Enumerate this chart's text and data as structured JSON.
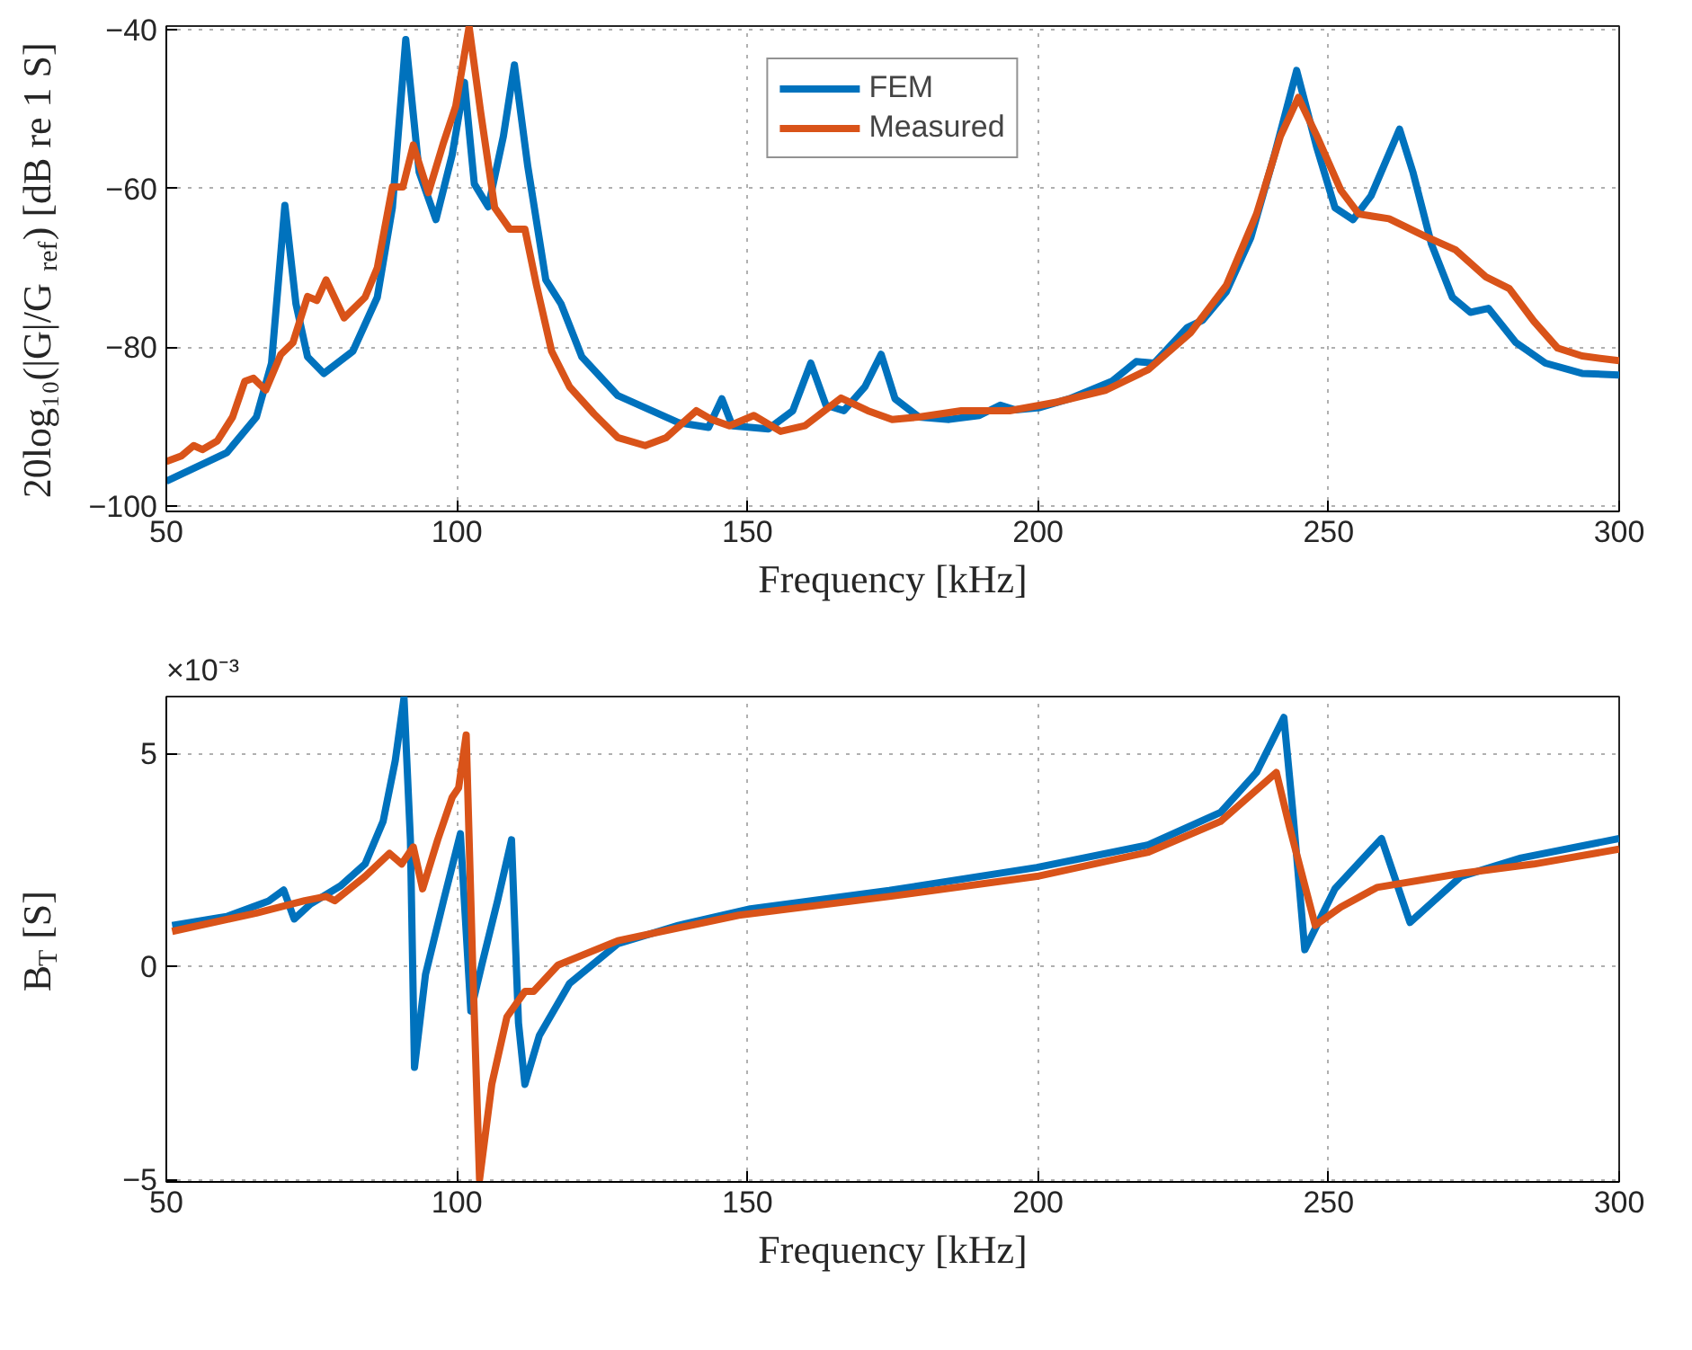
{
  "chart_data": [
    {
      "type": "line",
      "xlabel": "Frequency [kHz]",
      "ylabel": "20log₁₀(|G|/G$_{ref}$) [dB re 1 S]",
      "xlim": [
        50,
        300
      ],
      "ylim": [
        -100.7,
        -39.5
      ],
      "xticks": [
        50,
        100,
        150,
        200,
        250,
        300
      ],
      "yticks": [
        -100,
        -80,
        -60,
        -40
      ],
      "grid": true,
      "legend": "top",
      "line_style": "solid",
      "series": [
        {
          "name": "FEM",
          "color": "#0072bd",
          "x": [
            50,
            60.4,
            65.5,
            68.1,
            70.4,
            72.3,
            74.3,
            77.1,
            82.1,
            86.3,
            88.9,
            91.2,
            93.5,
            96.4,
            99.2,
            101.3,
            103.0,
            105.4,
            108.0,
            109.9,
            112.2,
            115.3,
            117.9,
            121.5,
            127.7,
            138.1,
            143.3,
            145.6,
            147.4,
            153.6,
            157.8,
            160.9,
            163.5,
            166.6,
            170.2,
            173.0,
            175.4,
            179.5,
            184.7,
            189.9,
            193.5,
            196.1,
            200.3,
            205.4,
            212.7,
            216.9,
            220.0,
            225.7,
            228.3,
            232.4,
            236.6,
            240.7,
            244.5,
            248.0,
            251.1,
            254.2,
            257.3,
            262.2,
            264.5,
            267.7,
            271.3,
            274.4,
            277.5,
            282.2,
            287.3,
            293.6,
            300
          ],
          "values": [
            -96.9,
            -93.3,
            -88.8,
            -82.0,
            -62.1,
            -74.5,
            -81.2,
            -83.3,
            -80.5,
            -73.7,
            -62.4,
            -41.2,
            -57.9,
            -63.9,
            -55.7,
            -46.6,
            -59.4,
            -62.3,
            -53.4,
            -44.4,
            -57.2,
            -71.5,
            -74.5,
            -81.2,
            -86.1,
            -89.5,
            -90.1,
            -86.5,
            -89.9,
            -90.3,
            -88.0,
            -82.0,
            -87.3,
            -88.0,
            -85.0,
            -80.9,
            -86.5,
            -88.8,
            -89.1,
            -88.6,
            -87.3,
            -87.9,
            -87.6,
            -86.5,
            -84.3,
            -81.8,
            -82.0,
            -77.5,
            -76.6,
            -73.0,
            -66.2,
            -55.7,
            -45.1,
            -54.9,
            -62.4,
            -63.9,
            -60.9,
            -52.5,
            -57.9,
            -67.0,
            -73.7,
            -75.6,
            -75.1,
            -79.4,
            -82.0,
            -83.3,
            -83.5
          ]
        },
        {
          "name": "Measured",
          "color": "#d95319",
          "x": [
            50,
            52.6,
            54.7,
            56.2,
            58.8,
            61.4,
            63.5,
            65.0,
            67.1,
            69.7,
            71.8,
            74.3,
            75.9,
            77.5,
            80.6,
            84.2,
            86.3,
            88.9,
            90.7,
            92.5,
            95.1,
            97.7,
            99.8,
            102.1,
            104.1,
            106.5,
            109.1,
            111.7,
            113.7,
            116.3,
            119.4,
            123.6,
            127.7,
            132.4,
            136.0,
            141.2,
            143.8,
            146.9,
            151.1,
            155.7,
            159.9,
            166.1,
            170.7,
            174.9,
            179.5,
            186.8,
            195.1,
            203.4,
            211.7,
            219.0,
            226.2,
            232.4,
            237.6,
            241.7,
            244.8,
            248.0,
            252.1,
            255.2,
            260.4,
            266.6,
            271.8,
            277.0,
            281.1,
            285.3,
            289.4,
            293.6,
            300
          ],
          "values": [
            -94.4,
            -93.7,
            -92.4,
            -92.9,
            -91.8,
            -88.8,
            -84.3,
            -83.9,
            -85.4,
            -80.9,
            -79.4,
            -73.6,
            -74.1,
            -71.5,
            -76.3,
            -73.7,
            -70.0,
            -59.8,
            -59.8,
            -54.5,
            -60.5,
            -54.2,
            -49.6,
            -39.6,
            -50.4,
            -62.4,
            -65.1,
            -65.1,
            -72.2,
            -80.5,
            -85.0,
            -88.4,
            -91.4,
            -92.4,
            -91.4,
            -88.0,
            -89.1,
            -89.9,
            -88.6,
            -90.6,
            -89.9,
            -86.4,
            -88.0,
            -89.1,
            -88.8,
            -88.0,
            -88.0,
            -86.9,
            -85.4,
            -82.8,
            -78.2,
            -72.2,
            -63.2,
            -53.4,
            -48.5,
            -53.4,
            -60.2,
            -63.2,
            -63.8,
            -66.0,
            -67.7,
            -71.1,
            -72.6,
            -76.7,
            -80.1,
            -81.1,
            -81.7
          ]
        }
      ]
    },
    {
      "type": "line",
      "xlabel": "Frequency [kHz]",
      "ylabel": "B$_{T}$ [S]",
      "xlim": [
        50,
        300
      ],
      "ylim": [
        -5.06,
        6.33
      ],
      "xticks": [
        50,
        100,
        150,
        200,
        250,
        300
      ],
      "yticks": [
        -5,
        0,
        5
      ],
      "grid": true,
      "line_style": "solid",
      "annotations": [
        "×10⁻³"
      ],
      "series": [
        {
          "color": "#0072bd",
          "x": [
            51.0,
            60.4,
            67.6,
            70.2,
            72.0,
            74.8,
            80.0,
            84.2,
            87.3,
            89.4,
            90.9,
            92.0,
            92.7,
            94.6,
            97.7,
            100.6,
            102.4,
            104.4,
            107.0,
            109.4,
            110.6,
            111.7,
            114.2,
            119.4,
            127.7,
            138.1,
            150.5,
            174.4,
            199.8,
            219.0,
            231.4,
            237.6,
            242.3,
            243.8,
            245.9,
            251.1,
            259.1,
            264.0,
            272.8,
            283.1,
            300
          ],
          "values": [
            0.96,
            1.17,
            1.53,
            1.79,
            1.11,
            1.46,
            1.89,
            2.4,
            3.4,
            4.83,
            6.3,
            2.97,
            -2.37,
            -0.19,
            1.54,
            3.11,
            -1.05,
            0.1,
            1.54,
            2.97,
            -1.33,
            -2.77,
            -1.62,
            -0.4,
            0.53,
            0.96,
            1.35,
            1.78,
            2.32,
            2.85,
            3.61,
            4.55,
            5.84,
            3.69,
            0.39,
            1.82,
            3.0,
            1.03,
            2.11,
            2.54,
            3.0
          ]
        },
        {
          "color": "#d95319",
          "x": [
            51.0,
            65.5,
            73.8,
            77.5,
            79.0,
            84.2,
            88.4,
            90.5,
            92.5,
            94.1,
            96.7,
            99.2,
            100.3,
            101.6,
            102.7,
            103.9,
            106.0,
            108.6,
            111.7,
            113.2,
            117.4,
            127.7,
            148.5,
            174.4,
            199.8,
            219.0,
            231.4,
            241.0,
            243.3,
            247.7,
            252.1,
            258.3,
            272.8,
            285.3,
            300
          ],
          "values": [
            0.82,
            1.25,
            1.54,
            1.64,
            1.54,
            2.11,
            2.65,
            2.4,
            2.8,
            1.82,
            2.97,
            3.97,
            4.19,
            5.43,
            0.1,
            -5.0,
            -2.77,
            -1.19,
            -0.59,
            -0.59,
            0.03,
            0.6,
            1.2,
            1.64,
            2.11,
            2.68,
            3.4,
            4.55,
            3.26,
            0.96,
            1.39,
            1.85,
            2.18,
            2.4,
            2.75
          ]
        }
      ]
    }
  ]
}
